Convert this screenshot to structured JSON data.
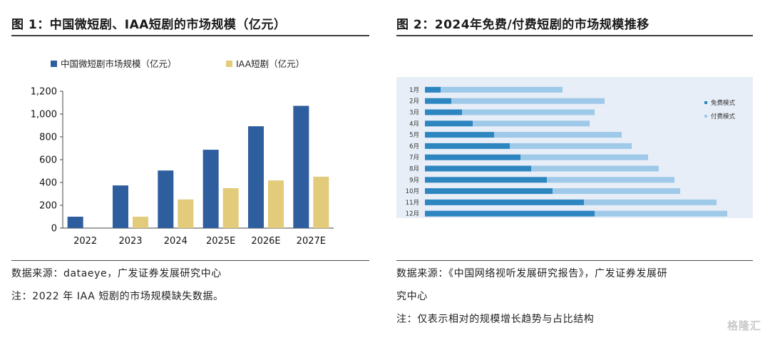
{
  "figure1": {
    "title": "图 1：中国微短剧、IAA短剧的市场规模（亿元）",
    "source": "数据来源：dataeye，广发证券发展研究中心",
    "note": "注：2022 年 IAA 短剧的市场规模缺失数据。"
  },
  "figure2": {
    "title": "图 2：2024年免费/付费短剧的市场规模推移",
    "source_line1": "数据来源：《中国网络视听发展研究报告》，广发证券发展研",
    "source_line2": "究中心",
    "note": "注：仅表示相对的规模增长趋势与占比结构"
  },
  "watermark": "格隆汇",
  "colors": {
    "blue": "#2e5e9e",
    "yellow": "#e2cb7b",
    "free_blue": "#2e86c1",
    "paid_blue": "#9ec9e8",
    "chart2_bg": "#e8eef7"
  },
  "chart_data": [
    {
      "type": "bar",
      "title": "中国微短剧、IAA短剧的市场规模（亿元）",
      "categories": [
        "2022",
        "2023",
        "2024",
        "2025E",
        "2026E",
        "2027E"
      ],
      "series": [
        {
          "name": "中国微短剧市场规模（亿元）",
          "values": [
            100,
            374,
            505,
            687,
            893,
            1072
          ],
          "color": "#2e5e9e"
        },
        {
          "name": "IAA短剧（亿元）",
          "values": [
            null,
            100,
            251,
            350,
            418,
            451
          ],
          "color": "#e2cb7b"
        }
      ],
      "yticks": [
        "0",
        "200",
        "400",
        "600",
        "800",
        "1,000",
        "1,200"
      ],
      "ylim": [
        0,
        1200
      ],
      "legend": "top"
    },
    {
      "type": "bar",
      "orientation": "horizontal",
      "stacked": true,
      "title": "2024年免费/付费短剧的市场规模推移",
      "categories": [
        "1月",
        "2月",
        "3月",
        "4月",
        "5月",
        "6月",
        "7月",
        "8月",
        "9月",
        "10月",
        "11月",
        "12月"
      ],
      "series": [
        {
          "name": "免费模式",
          "values": [
            22,
            37,
            52,
            67,
            97,
            119,
            134,
            149,
            171,
            179,
            223,
            238
          ],
          "color": "#2e86c1"
        },
        {
          "name": "付费模式",
          "values": [
            171,
            215,
            186,
            164,
            179,
            171,
            179,
            179,
            179,
            179,
            186,
            186
          ],
          "color": "#9ec9e8"
        }
      ],
      "legend": "right"
    }
  ]
}
